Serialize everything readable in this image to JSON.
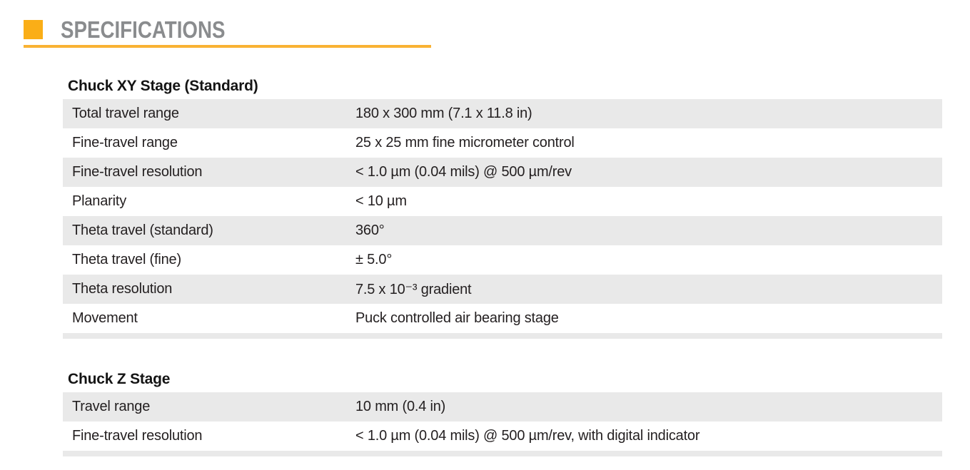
{
  "page": {
    "title": "SPECIFICATIONS"
  },
  "colors": {
    "accent": "#FAAE17",
    "underline": "#F9B233",
    "row_stripe": "#E9E9E9",
    "title_gray": "#8A8C8E",
    "body_text": "#231F20"
  },
  "sections": [
    {
      "heading": "Chuck XY Stage (Standard)",
      "rows": [
        {
          "label": "Total travel range",
          "value": "180 x 300 mm (7.1 x 11.8 in)"
        },
        {
          "label": "Fine-travel range",
          "value": "25 x 25 mm fine micrometer control"
        },
        {
          "label": "Fine-travel resolution",
          "value": "< 1.0 µm (0.04 mils) @ 500 µm/rev"
        },
        {
          "label": "Planarity",
          "value": "< 10 µm"
        },
        {
          "label": "Theta travel (standard)",
          "value": "360°"
        },
        {
          "label": "Theta travel (fine)",
          "value": "± 5.0°"
        },
        {
          "label": "Theta resolution",
          "value": "7.5 x 10⁻³ gradient"
        },
        {
          "label": "Movement",
          "value": "Puck controlled air bearing stage"
        }
      ]
    },
    {
      "heading": "Chuck Z Stage",
      "rows": [
        {
          "label": "Travel range",
          "value": "10 mm (0.4 in)"
        },
        {
          "label": "Fine-travel resolution",
          "value": "< 1.0 µm (0.04 mils) @ 500 µm/rev, with digital indicator"
        }
      ]
    }
  ]
}
